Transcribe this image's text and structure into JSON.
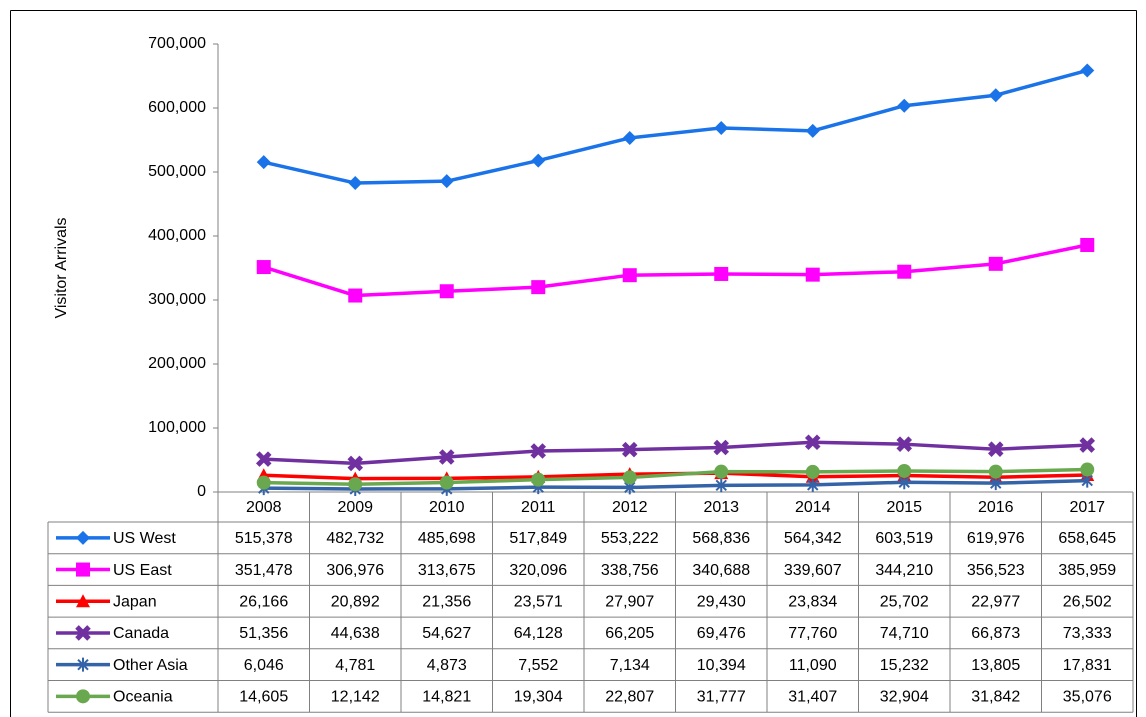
{
  "chart_data": {
    "type": "line",
    "y_label": "Visitor Arrivals",
    "categories": [
      "2008",
      "2009",
      "2010",
      "2011",
      "2012",
      "2013",
      "2014",
      "2015",
      "2016",
      "2017"
    ],
    "ylim": [
      0,
      700000
    ],
    "yticks": [
      0,
      {
        "value": 100000,
        "label": "100,000"
      },
      {
        "value": 200000,
        "label": "200,000"
      },
      {
        "value": 300000,
        "label": "300,000"
      },
      {
        "value": 400000,
        "label": "400,000"
      },
      {
        "value": 500000,
        "label": "500,000"
      },
      {
        "value": 600000,
        "label": "600,000"
      },
      {
        "value": 700000,
        "label": "700,000"
      }
    ],
    "grid": false,
    "series": [
      {
        "name": "US West",
        "color": "#1a73e8",
        "marker": "diamond",
        "values": [
          515378,
          482732,
          485698,
          517849,
          553222,
          568836,
          564342,
          603519,
          619976,
          658645
        ],
        "value_labels": [
          "515,378",
          "482,732",
          "485,698",
          "517,849",
          "553,222",
          "568,836",
          "564,342",
          "603,519",
          "619,976",
          "658,645"
        ]
      },
      {
        "name": "US East",
        "color": "#ff00ff",
        "marker": "square",
        "values": [
          351478,
          306976,
          313675,
          320096,
          338756,
          340688,
          339607,
          344210,
          356523,
          385959
        ],
        "value_labels": [
          "351,478",
          "306,976",
          "313,675",
          "320,096",
          "338,756",
          "340,688",
          "339,607",
          "344,210",
          "356,523",
          "385,959"
        ]
      },
      {
        "name": "Japan",
        "color": "#ff0000",
        "marker": "triangle",
        "values": [
          26166,
          20892,
          21356,
          23571,
          27907,
          29430,
          23834,
          25702,
          22977,
          26502
        ],
        "value_labels": [
          "26,166",
          "20,892",
          "21,356",
          "23,571",
          "27,907",
          "29,430",
          "23,834",
          "25,702",
          "22,977",
          "26,502"
        ]
      },
      {
        "name": "Canada",
        "color": "#7030a0",
        "marker": "x",
        "values": [
          51356,
          44638,
          54627,
          64128,
          66205,
          69476,
          77760,
          74710,
          66873,
          73333
        ],
        "value_labels": [
          "51,356",
          "44,638",
          "54,627",
          "64,128",
          "66,205",
          "69,476",
          "77,760",
          "74,710",
          "66,873",
          "73,333"
        ]
      },
      {
        "name": "Other Asia",
        "color": "#3463a8",
        "marker": "star",
        "values": [
          6046,
          4781,
          4873,
          7552,
          7134,
          10394,
          11090,
          15232,
          13805,
          17831
        ],
        "value_labels": [
          "6,046",
          "4,781",
          "4,873",
          "7,552",
          "7,134",
          "10,394",
          "11,090",
          "15,232",
          "13,805",
          "17,831"
        ]
      },
      {
        "name": "Oceania",
        "color": "#6aa84f",
        "marker": "circle",
        "values": [
          14605,
          12142,
          14821,
          19304,
          22807,
          31777,
          31407,
          32904,
          31842,
          35076
        ],
        "value_labels": [
          "14,605",
          "12,142",
          "14,821",
          "19,304",
          "22,807",
          "31,777",
          "31,407",
          "32,904",
          "31,842",
          "35,076"
        ]
      }
    ]
  }
}
